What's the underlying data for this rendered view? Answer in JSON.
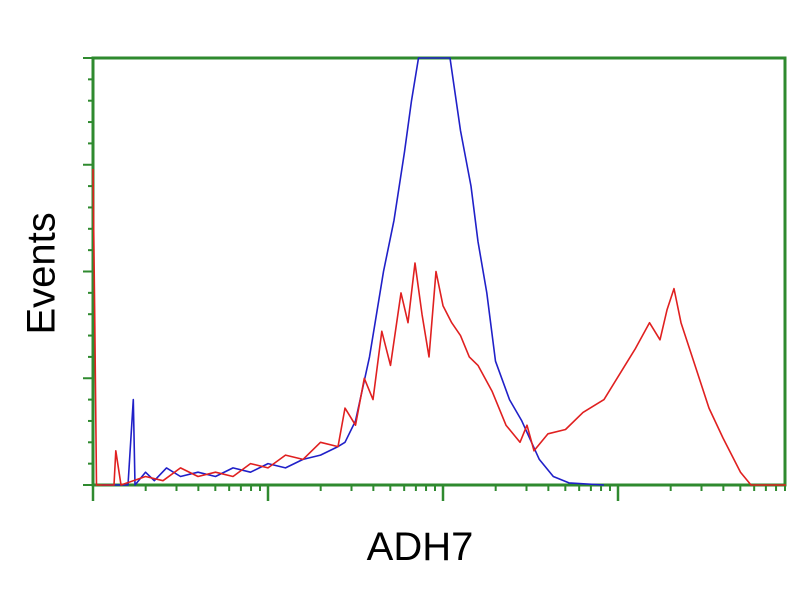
{
  "chart_data": {
    "type": "line",
    "title": "",
    "xlabel": "ADH7",
    "ylabel": "Events",
    "x_scale": "log",
    "xlim_decades": [
      0,
      3.96
    ],
    "ylim": [
      0,
      100
    ],
    "grid": false,
    "frame_color": "#2f8a2f",
    "series": [
      {
        "color": "#2020c8",
        "points": [
          [
            0.05,
            0
          ],
          [
            0.2,
            0
          ],
          [
            0.23,
            20
          ],
          [
            0.24,
            0
          ],
          [
            0.3,
            3
          ],
          [
            0.35,
            1
          ],
          [
            0.42,
            4
          ],
          [
            0.5,
            2
          ],
          [
            0.6,
            3
          ],
          [
            0.7,
            2
          ],
          [
            0.8,
            4
          ],
          [
            0.9,
            3
          ],
          [
            1.0,
            5
          ],
          [
            1.1,
            4
          ],
          [
            1.2,
            6
          ],
          [
            1.3,
            7
          ],
          [
            1.4,
            9
          ],
          [
            1.44,
            10
          ],
          [
            1.5,
            15
          ],
          [
            1.58,
            30
          ],
          [
            1.66,
            50
          ],
          [
            1.72,
            62
          ],
          [
            1.78,
            78
          ],
          [
            1.82,
            90
          ],
          [
            1.86,
            100
          ],
          [
            2.04,
            100
          ],
          [
            2.1,
            83
          ],
          [
            2.16,
            70
          ],
          [
            2.2,
            57
          ],
          [
            2.25,
            45
          ],
          [
            2.3,
            29
          ],
          [
            2.38,
            20
          ],
          [
            2.45,
            15
          ],
          [
            2.55,
            6
          ],
          [
            2.63,
            2
          ],
          [
            2.72,
            0.5
          ],
          [
            2.92,
            0
          ]
        ]
      },
      {
        "color": "#e02020",
        "points": [
          [
            0.0,
            74
          ],
          [
            0.01,
            38
          ],
          [
            0.02,
            0
          ],
          [
            0.12,
            0
          ],
          [
            0.13,
            8
          ],
          [
            0.16,
            0
          ],
          [
            0.3,
            2
          ],
          [
            0.4,
            1
          ],
          [
            0.5,
            4
          ],
          [
            0.6,
            2
          ],
          [
            0.7,
            3
          ],
          [
            0.8,
            2
          ],
          [
            0.9,
            5
          ],
          [
            1.0,
            4
          ],
          [
            1.1,
            7
          ],
          [
            1.2,
            6
          ],
          [
            1.3,
            10
          ],
          [
            1.4,
            9
          ],
          [
            1.44,
            18
          ],
          [
            1.5,
            14
          ],
          [
            1.55,
            25
          ],
          [
            1.6,
            20
          ],
          [
            1.65,
            36
          ],
          [
            1.7,
            28
          ],
          [
            1.76,
            45
          ],
          [
            1.8,
            38
          ],
          [
            1.84,
            52
          ],
          [
            1.88,
            40
          ],
          [
            1.92,
            30
          ],
          [
            1.96,
            50
          ],
          [
            2.0,
            42
          ],
          [
            2.05,
            38
          ],
          [
            2.1,
            35
          ],
          [
            2.15,
            30
          ],
          [
            2.2,
            28
          ],
          [
            2.28,
            22
          ],
          [
            2.36,
            14
          ],
          [
            2.44,
            10
          ],
          [
            2.48,
            14
          ],
          [
            2.52,
            8
          ],
          [
            2.6,
            12
          ],
          [
            2.7,
            13
          ],
          [
            2.8,
            17
          ],
          [
            2.92,
            20
          ],
          [
            3.04,
            28
          ],
          [
            3.1,
            32
          ],
          [
            3.18,
            38
          ],
          [
            3.24,
            34
          ],
          [
            3.28,
            41
          ],
          [
            3.32,
            46
          ],
          [
            3.36,
            38
          ],
          [
            3.44,
            28
          ],
          [
            3.52,
            18
          ],
          [
            3.6,
            11
          ],
          [
            3.7,
            3
          ],
          [
            3.76,
            0
          ],
          [
            3.96,
            0
          ]
        ]
      }
    ]
  }
}
